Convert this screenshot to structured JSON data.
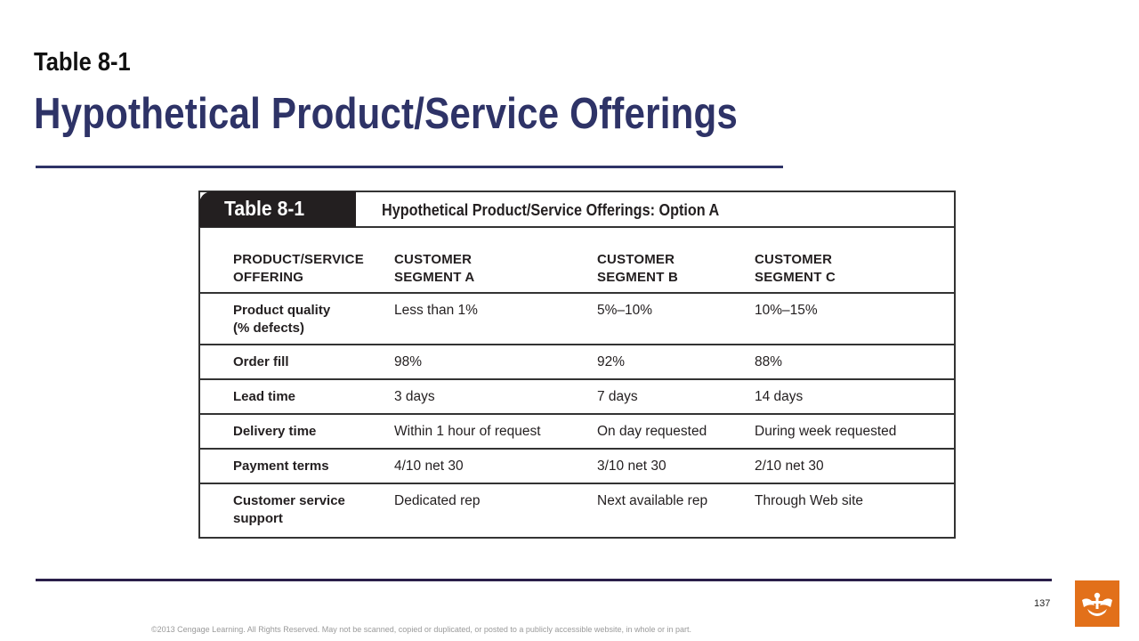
{
  "slide": {
    "label": "Table 8-1",
    "title": "Hypothetical Product/Service Offerings"
  },
  "table": {
    "tab_label": "Table 8-1",
    "caption": "Hypothetical Product/Service Offerings: Option A",
    "headers": [
      [
        "PRODUCT/SERVICE",
        "OFFERING"
      ],
      [
        "CUSTOMER",
        "SEGMENT A"
      ],
      [
        "CUSTOMER",
        "SEGMENT B"
      ],
      [
        "CUSTOMER",
        "SEGMENT C"
      ]
    ],
    "rows": [
      {
        "label": [
          "Product quality",
          "(% defects)"
        ],
        "values": [
          "Less than 1%",
          "5%–10%",
          "10%–15%"
        ]
      },
      {
        "label": [
          "Order fill"
        ],
        "values": [
          "98%",
          "92%",
          "88%"
        ]
      },
      {
        "label": [
          "Lead time"
        ],
        "values": [
          "3 days",
          "7 days",
          "14 days"
        ]
      },
      {
        "label": [
          "Delivery time"
        ],
        "values": [
          "Within 1 hour of request",
          "On day requested",
          "During week requested"
        ]
      },
      {
        "label": [
          "Payment terms"
        ],
        "values": [
          "4/10 net 30",
          "3/10 net 30",
          "2/10 net 30"
        ]
      },
      {
        "label": [
          "Customer service",
          "support"
        ],
        "values": [
          "Dedicated rep",
          "Next available rep",
          "Through Web site"
        ]
      }
    ]
  },
  "footer": {
    "page_number": "137",
    "copyright": "©2013 Cengage Learning. All Rights Reserved. May not be scanned, copied or duplicated, or posted to a publicly accessible website, in whole or in part.",
    "logo_icon": "cengage-logo-icon",
    "logo_color": "#e2701a"
  }
}
